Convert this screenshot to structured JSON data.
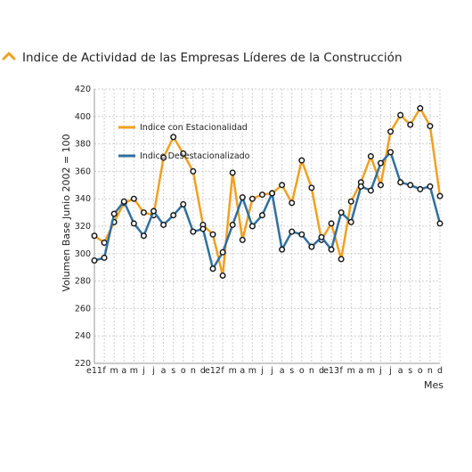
{
  "header": {
    "title": "Indice de Actividad de las Empresas Líderes de la Construcción",
    "icon": "chevron-up-icon",
    "icon_color": "#f0a020"
  },
  "chart_data": {
    "type": "line",
    "title": "Indice de Actividad de las Empresas Líderes de la Construcción",
    "xlabel": "Mes",
    "ylabel": "Volumen Base Junio 2002 = 100",
    "ylim": [
      220,
      420
    ],
    "yticks": [
      220,
      240,
      260,
      280,
      300,
      320,
      340,
      360,
      380,
      400,
      420
    ],
    "grid": true,
    "legend_position": "top-left",
    "categories": [
      "e11",
      "f",
      "m",
      "a",
      "m",
      "j",
      "j",
      "a",
      "s",
      "o",
      "n",
      "d",
      "e12",
      "f",
      "m",
      "a",
      "m",
      "j",
      "j",
      "a",
      "s",
      "o",
      "n",
      "d",
      "e13",
      "f",
      "m",
      "a",
      "m",
      "j",
      "j",
      "a",
      "s",
      "o",
      "n",
      "d"
    ],
    "series": [
      {
        "name": "Indice con Estacionalidad",
        "color": "#f0a020",
        "values": [
          313,
          308,
          323,
          337,
          340,
          330,
          328,
          370,
          385,
          373,
          360,
          321,
          314,
          284,
          359,
          310,
          340,
          343,
          344,
          350,
          337,
          368,
          348,
          310,
          322,
          296,
          338,
          352,
          371,
          350,
          389,
          401,
          394,
          406,
          393,
          342
        ]
      },
      {
        "name": "Indice Desestacionalizado",
        "color": "#2f6f9f",
        "values": [
          295,
          297,
          329,
          338,
          322,
          313,
          331,
          321,
          328,
          336,
          316,
          318,
          289,
          301,
          321,
          341,
          320,
          328,
          344,
          303,
          316,
          314,
          305,
          312,
          303,
          330,
          323,
          349,
          346,
          366,
          374,
          352,
          350,
          347,
          349,
          322
        ]
      }
    ]
  }
}
